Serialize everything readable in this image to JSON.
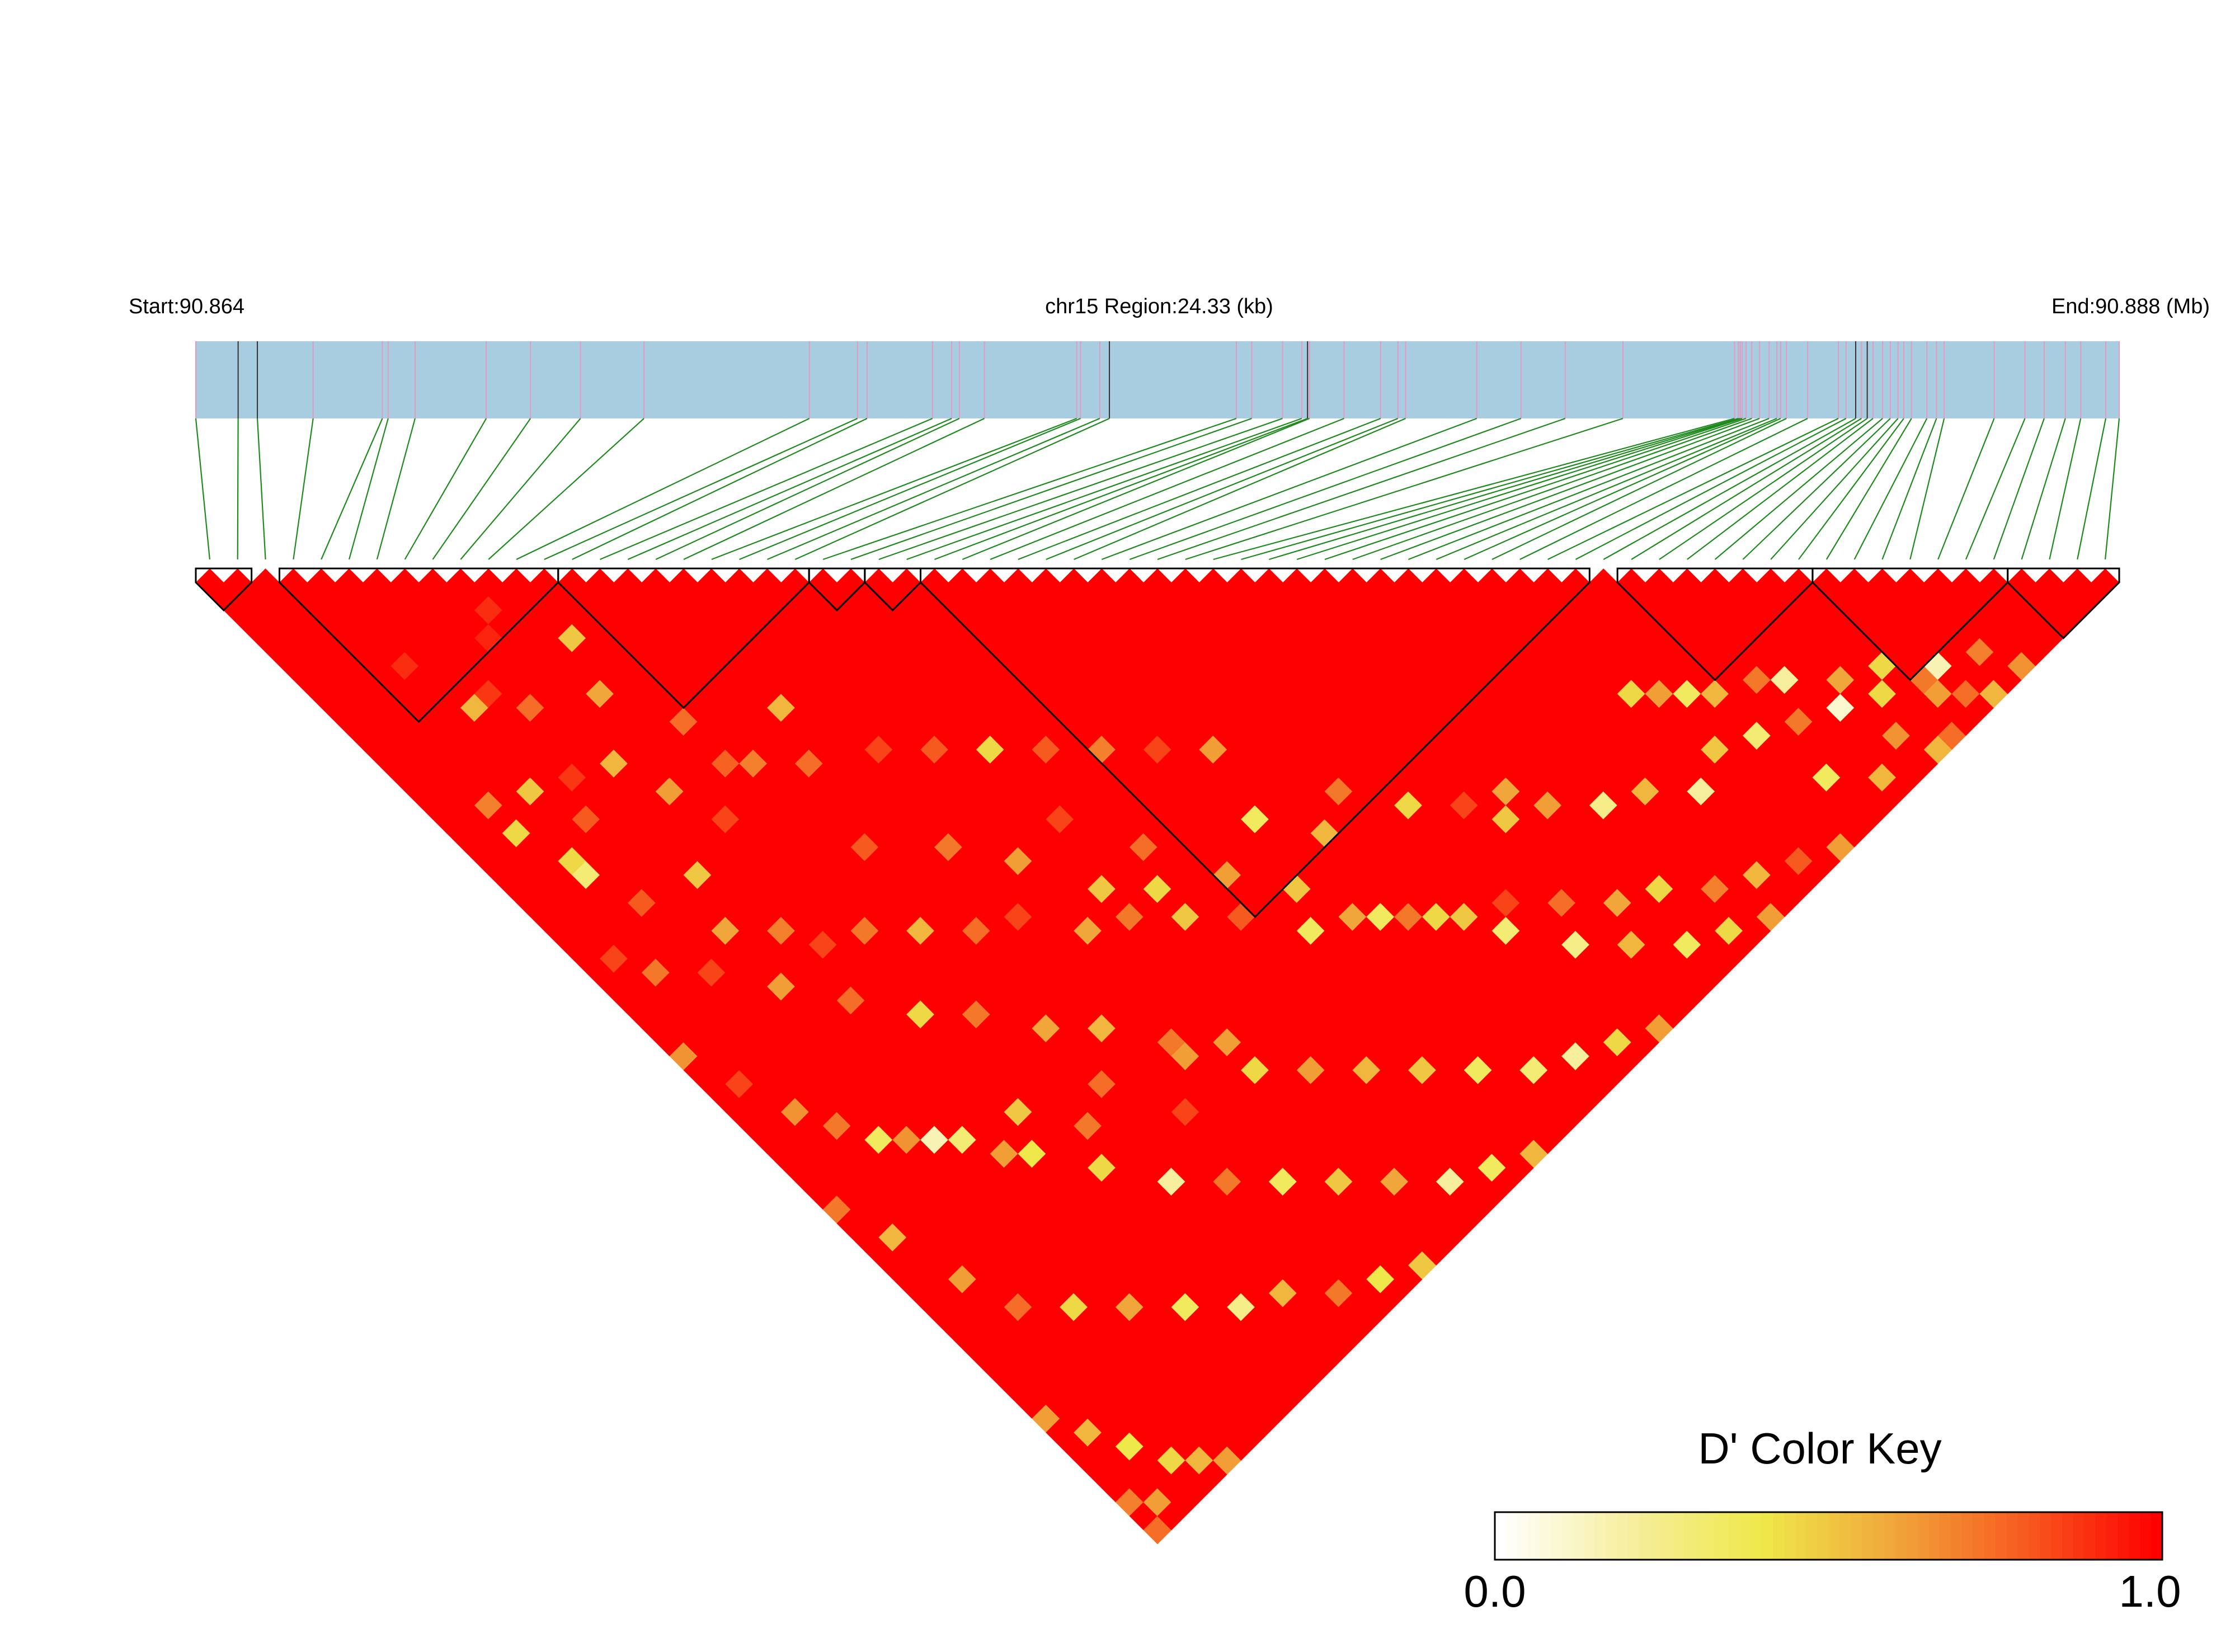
{
  "header": {
    "start_label": "Start:90.864",
    "region_label": "chr15 Region:24.33 (kb)",
    "end_label": "End:90.888 (Mb)"
  },
  "colors": {
    "region_bar": "#a8cde1",
    "snp_tick": "#e39ac0",
    "connector": "#1e8a1e",
    "block_outline": "#000000",
    "ld_high": "#ff0000",
    "ld_mid": "#efe84a",
    "ld_low": "#ffffff"
  },
  "chart_data": {
    "type": "heatmap",
    "title": "",
    "chromosome": "chr15",
    "start_mb": 90.864,
    "end_mb": 90.888,
    "region_kb": 24.33,
    "n_snps": 69,
    "snp_positions_fraction": [
      0,
      0.022,
      0.032,
      0.061,
      0.097,
      0.1,
      0.114,
      0.151,
      0.174,
      0.2,
      0.233,
      0.319,
      0.344,
      0.349,
      0.383,
      0.393,
      0.397,
      0.41,
      0.458,
      0.46,
      0.47,
      0.475,
      0.541,
      0.549,
      0.565,
      0.575,
      0.578,
      0.579,
      0.597,
      0.616,
      0.625,
      0.629,
      0.666,
      0.689,
      0.712,
      0.742,
      0.8,
      0.802,
      0.803,
      0.804,
      0.806,
      0.809,
      0.813,
      0.818,
      0.822,
      0.824,
      0.827,
      0.838,
      0.854,
      0.858,
      0.863,
      0.866,
      0.869,
      0.872,
      0.877,
      0.881,
      0.885,
      0.888,
      0.892,
      0.9,
      0.905,
      0.909,
      0.935,
      0.951,
      0.961,
      0.972,
      0.98,
      0.993,
      1.0
    ],
    "dark_ticks_fraction": [
      0.022,
      0.032,
      0.475,
      0.578,
      0.863,
      0.869
    ],
    "haplotype_blocks": [
      [
        0,
        1
      ],
      [
        3,
        12
      ],
      [
        13,
        21
      ],
      [
        22,
        23
      ],
      [
        24,
        25
      ],
      [
        26,
        49
      ],
      [
        51,
        57
      ],
      [
        58,
        64
      ],
      [
        65,
        68
      ]
    ],
    "color_key": {
      "title": "D' Color Key",
      "min_label": "0.0",
      "max_label": "1.0",
      "min": 0.0,
      "max": 1.0,
      "stops": [
        "#ffffff",
        "#f6ee9c",
        "#efe84a",
        "#f0a63a",
        "#f75a1f",
        "#ff0000"
      ]
    },
    "d_prime_rule": "D' is 1.0 for every SNP pair except those listed in d_prime_exceptions as [snp_i, snp_j, D'] (0-based indices)",
    "d_prime_exceptions": [
      [
        4,
        10,
        0.9
      ],
      [
        6,
        14,
        0.88
      ],
      [
        8,
        12,
        0.92
      ],
      [
        8,
        21,
        0.55
      ],
      [
        9,
        11,
        0.9
      ],
      [
        10,
        18,
        0.6
      ],
      [
        5,
        14,
        0.55
      ],
      [
        2,
        18,
        0.7
      ],
      [
        11,
        15,
        0.5
      ],
      [
        7,
        16,
        0.75
      ],
      [
        4,
        19,
        0.5
      ],
      [
        12,
        22,
        0.75
      ],
      [
        6,
        20,
        0.88
      ],
      [
        10,
        27,
        0.85
      ],
      [
        3,
        23,
        0.45
      ],
      [
        5,
        22,
        0.8
      ],
      [
        9,
        24,
        0.62
      ],
      [
        12,
        25,
        0.78
      ],
      [
        16,
        25,
        0.55
      ],
      [
        13,
        26,
        0.7
      ],
      [
        15,
        28,
        0.75
      ],
      [
        18,
        30,
        0.85
      ],
      [
        20,
        32,
        0.8
      ],
      [
        22,
        34,
        0.45
      ],
      [
        24,
        36,
        0.8
      ],
      [
        26,
        38,
        0.7
      ],
      [
        28,
        40,
        0.85
      ],
      [
        30,
        42,
        0.62
      ],
      [
        2,
        20,
        0.45
      ],
      [
        3,
        24,
        0.3
      ],
      [
        4,
        27,
        0.8
      ],
      [
        6,
        31,
        0.6
      ],
      [
        7,
        28,
        0.5
      ],
      [
        8,
        33,
        0.7
      ],
      [
        9,
        35,
        0.85
      ],
      [
        11,
        36,
        0.72
      ],
      [
        13,
        38,
        0.55
      ],
      [
        15,
        40,
        0.75
      ],
      [
        17,
        41,
        0.85
      ],
      [
        19,
        44,
        0.6
      ],
      [
        21,
        45,
        0.72
      ],
      [
        23,
        47,
        0.5
      ],
      [
        25,
        49,
        0.8
      ],
      [
        27,
        52,
        0.35
      ],
      [
        29,
        53,
        0.6
      ],
      [
        31,
        55,
        0.72
      ],
      [
        33,
        57,
        0.5
      ],
      [
        35,
        58,
        0.85
      ],
      [
        37,
        60,
        0.75
      ],
      [
        39,
        62,
        0.6
      ],
      [
        41,
        63,
        0.45
      ],
      [
        43,
        65,
        0.7
      ],
      [
        45,
        66,
        0.55
      ],
      [
        47,
        67,
        0.8
      ],
      [
        49,
        68,
        0.62
      ],
      [
        48,
        60,
        0.5
      ],
      [
        50,
        61,
        0.3
      ],
      [
        52,
        62,
        0.72
      ],
      [
        54,
        63,
        0.1
      ],
      [
        56,
        64,
        0.45
      ],
      [
        55,
        66,
        0.65
      ],
      [
        53,
        67,
        0.55
      ],
      [
        51,
        65,
        0.35
      ],
      [
        57,
        68,
        0.75
      ],
      [
        14,
        50,
        0.75
      ],
      [
        18,
        52,
        0.62
      ],
      [
        20,
        55,
        0.45
      ],
      [
        22,
        57,
        0.62
      ],
      [
        24,
        59,
        0.55
      ],
      [
        26,
        61,
        0.5
      ],
      [
        28,
        63,
        0.35
      ],
      [
        30,
        65,
        0.3
      ],
      [
        32,
        66,
        0.2
      ],
      [
        34,
        67,
        0.45
      ],
      [
        36,
        68,
        0.62
      ],
      [
        16,
        54,
        0.85
      ],
      [
        10,
        48,
        0.5
      ],
      [
        12,
        51,
        0.72
      ],
      [
        5,
        45,
        0.65
      ],
      [
        7,
        47,
        0.3
      ],
      [
        9,
        50,
        0.4
      ],
      [
        11,
        53,
        0.45
      ],
      [
        13,
        56,
        0.2
      ],
      [
        15,
        58,
        0.72
      ],
      [
        17,
        60,
        0.35
      ],
      [
        19,
        62,
        0.5
      ],
      [
        21,
        64,
        0.6
      ],
      [
        23,
        66,
        0.2
      ],
      [
        25,
        67,
        0.35
      ],
      [
        27,
        68,
        0.55
      ],
      [
        2,
        40,
        0.65
      ],
      [
        4,
        44,
        0.35
      ],
      [
        6,
        46,
        0.15
      ],
      [
        8,
        49,
        0.62
      ],
      [
        3,
        42,
        0.72
      ],
      [
        1,
        37,
        0.85
      ],
      [
        0,
        34,
        0.65
      ],
      [
        38,
        55,
        0.5
      ],
      [
        40,
        56,
        0.62
      ],
      [
        42,
        58,
        0.25
      ],
      [
        44,
        59,
        0.55
      ],
      [
        46,
        61,
        0.2
      ],
      [
        33,
        48,
        0.72
      ],
      [
        35,
        51,
        0.45
      ],
      [
        37,
        53,
        0.85
      ],
      [
        39,
        54,
        0.6
      ],
      [
        29,
        46,
        0.35
      ],
      [
        31,
        49,
        0.55
      ],
      [
        22,
        39,
        0.85
      ],
      [
        24,
        43,
        0.75
      ],
      [
        58,
        66,
        0.62
      ],
      [
        59,
        67,
        0.75
      ],
      [
        60,
        68,
        0.55
      ],
      [
        61,
        66,
        0.7
      ],
      [
        62,
        68,
        0.65
      ],
      [
        58,
        65,
        0.72
      ],
      [
        59,
        65,
        0.15
      ],
      [
        56,
        68,
        0.55
      ],
      [
        14,
        33,
        0.8
      ],
      [
        17,
        36,
        0.72
      ],
      [
        19,
        39,
        0.62
      ],
      [
        21,
        43,
        0.5
      ],
      [
        23,
        45,
        0.45
      ],
      [
        26,
        47,
        0.62
      ],
      [
        28,
        50,
        0.5
      ],
      [
        30,
        54,
        0.35
      ],
      [
        32,
        56,
        0.45
      ],
      [
        34,
        59,
        0.3
      ],
      [
        36,
        62,
        0.25
      ],
      [
        38,
        64,
        0.55
      ],
      [
        40,
        66,
        0.35
      ],
      [
        42,
        67,
        0.45
      ],
      [
        44,
        68,
        0.62
      ],
      [
        1,
        28,
        0.85
      ],
      [
        2,
        30,
        0.72
      ],
      [
        4,
        32,
        0.85
      ],
      [
        6,
        35,
        0.62
      ],
      [
        8,
        38,
        0.75
      ],
      [
        10,
        41,
        0.45
      ],
      [
        12,
        43,
        0.72
      ],
      [
        14,
        46,
        0.6
      ],
      [
        16,
        48,
        0.55
      ],
      [
        18,
        51,
        0.72
      ],
      [
        20,
        53,
        0.62
      ],
      [
        0,
        45,
        0.72
      ],
      [
        1,
        48,
        0.55
      ],
      [
        2,
        52,
        0.62
      ],
      [
        3,
        55,
        0.75
      ],
      [
        5,
        57,
        0.45
      ],
      [
        7,
        59,
        0.6
      ],
      [
        9,
        61,
        0.35
      ],
      [
        11,
        63,
        0.25
      ],
      [
        13,
        64,
        0.55
      ],
      [
        15,
        66,
        0.72
      ],
      [
        17,
        67,
        0.4
      ],
      [
        19,
        68,
        0.5
      ],
      [
        0,
        60,
        0.62
      ],
      [
        1,
        62,
        0.55
      ],
      [
        2,
        64,
        0.4
      ],
      [
        3,
        66,
        0.45
      ],
      [
        4,
        67,
        0.55
      ],
      [
        5,
        68,
        0.62
      ],
      [
        0,
        66,
        0.7
      ],
      [
        1,
        67,
        0.62
      ],
      [
        0,
        68,
        0.75
      ],
      [
        47,
        55,
        0.45
      ],
      [
        48,
        56,
        0.62
      ],
      [
        49,
        57,
        0.35
      ],
      [
        50,
        58,
        0.55
      ],
      [
        52,
        59,
        0.72
      ],
      [
        53,
        60,
        0.2
      ],
      [
        55,
        62,
        0.6
      ],
      [
        57,
        63,
        0.45
      ]
    ]
  }
}
